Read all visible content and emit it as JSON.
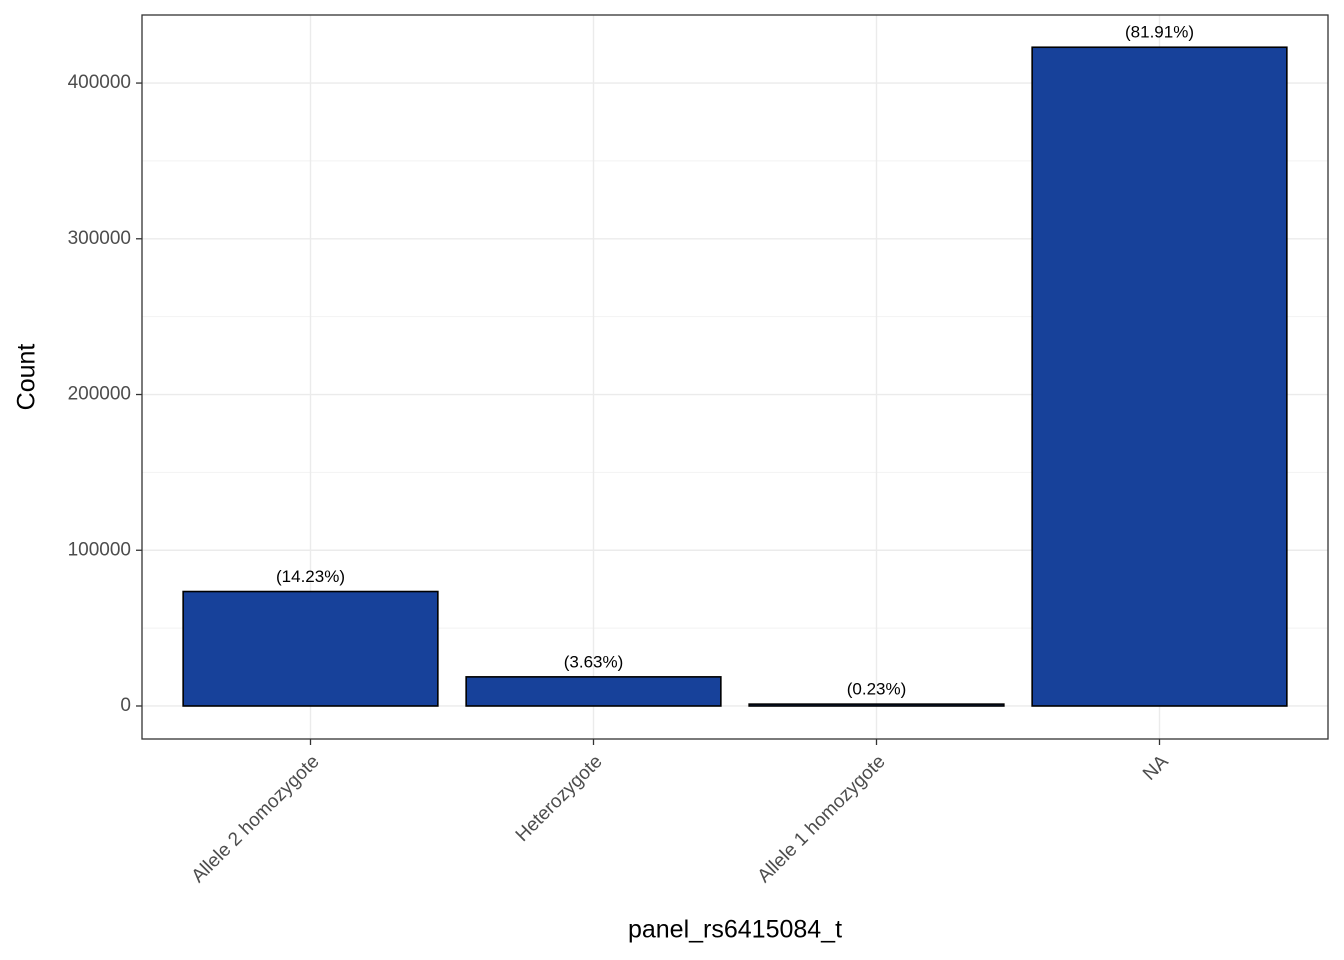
{
  "chart_data": {
    "type": "bar",
    "x_label": "panel_rs6415084_t",
    "y_label": "Count",
    "categories": [
      "Allele 2 homozygote",
      "Heterozygote",
      "Allele 1 homozygote",
      "NA"
    ],
    "values": [
      73500,
      18700,
      1200,
      423000
    ],
    "percent_labels": [
      "(14.23%)",
      "(3.63%)",
      "(0.23%)",
      "(81.91%)"
    ],
    "color": "#17419a",
    "ylim": [
      -21200,
      443700
    ],
    "yticks": [
      0,
      100000,
      200000,
      300000,
      400000
    ],
    "grid": true,
    "minor_grid": true
  }
}
